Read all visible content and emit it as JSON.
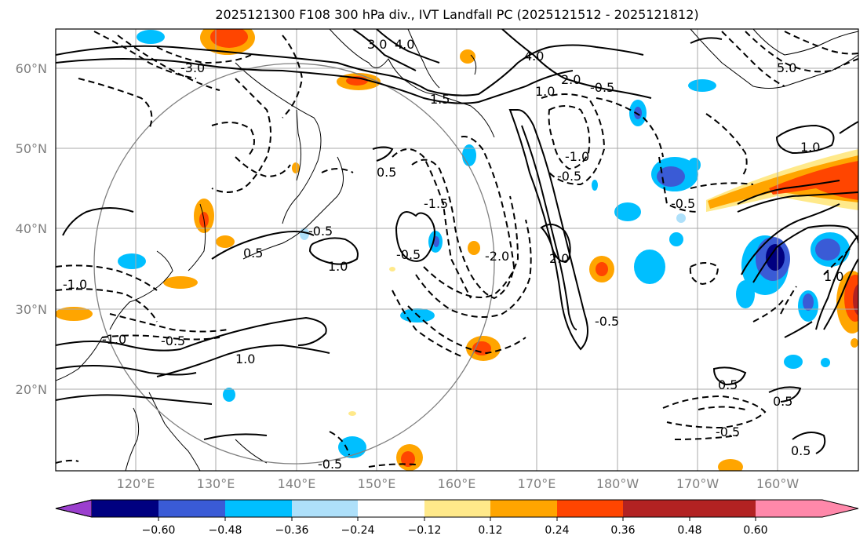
{
  "title": "2025121300 F108 300 hPa div., IVT Landfall PC (2025121512 - 2025121812)",
  "lat_labels": [
    "60°N",
    "50°N",
    "40°N",
    "30°N",
    "20°N"
  ],
  "lon_labels": [
    "120°E",
    "130°E",
    "140°E",
    "150°E",
    "160°E",
    "170°E",
    "180°W",
    "170°W",
    "160°W"
  ],
  "colorbar": {
    "ticks": [
      "−0.60",
      "−0.48",
      "−0.36",
      "−0.24",
      "−0.12",
      "0.12",
      "0.24",
      "0.36",
      "0.48",
      "0.60"
    ],
    "colors": [
      "#9b3fce",
      "#000080",
      "#3a5bd6",
      "#00bfff",
      "#aee0fa",
      "#ffffff",
      "#ffe98a",
      "#ffa500",
      "#ff4500",
      "#b22222",
      "#ff88aa"
    ]
  },
  "contour_labels": [
    "-3.0",
    "3.0",
    "4.0",
    "4.0",
    "2.0",
    "1.5",
    "1.0",
    "-0.5",
    "1.0",
    "-1.0",
    "-0.5",
    "0.5",
    "-0.5",
    "1.0",
    "-0.5",
    "0.5",
    "-0.5",
    "-1.0",
    "-1.5",
    "-2.0",
    "2.0",
    "-0.5",
    "1.0",
    "-1.0",
    "-0.5",
    "1.0",
    "0.5",
    "0.5",
    "-0.5",
    "0.5",
    "-0.5",
    "5.0"
  ]
}
